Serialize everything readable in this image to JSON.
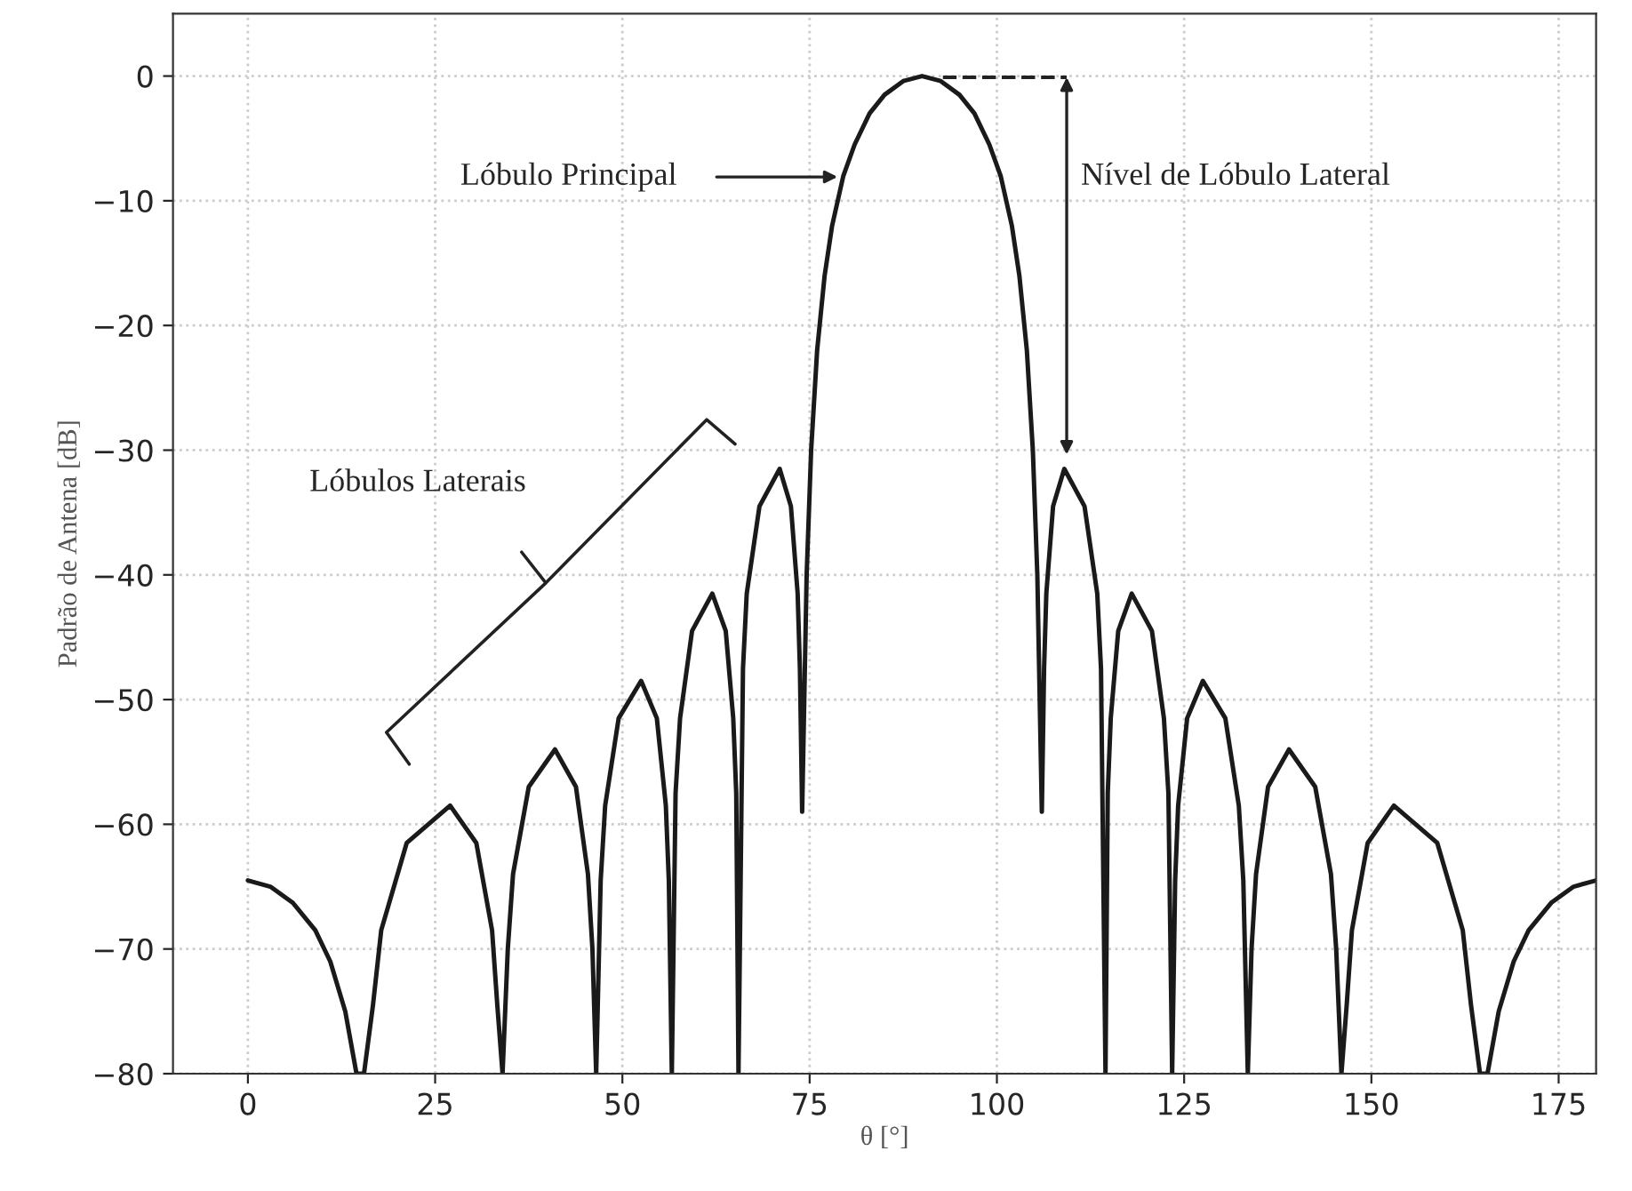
{
  "chart_data": {
    "type": "line",
    "xlabel": "θ [°]",
    "ylabel": "Padrão de Antena [dB]",
    "xlim": [
      -10,
      180
    ],
    "ylim": [
      -80,
      5
    ],
    "xticks": [
      0,
      25,
      50,
      75,
      100,
      125,
      150,
      175
    ],
    "yticks": [
      0,
      -10,
      -20,
      -30,
      -40,
      -50,
      -60,
      -70,
      -80
    ],
    "grid": true,
    "marker": "none",
    "line_style": "solid",
    "series": [
      {
        "color": "#1a1a1a",
        "x": [
          0,
          3,
          6,
          9,
          11,
          13,
          14.5,
          15.5,
          16.7,
          17.8,
          21.2,
          27,
          30.5,
          32.6,
          33.3,
          34,
          34.7,
          35.4,
          37.5,
          41,
          43.8,
          45.4,
          46,
          46.5,
          47.1,
          47.7,
          49.5,
          52.5,
          54.6,
          55.8,
          56.2,
          56.6,
          57.1,
          57.7,
          59.3,
          62,
          63.8,
          64.8,
          65.2,
          65.5,
          66.1,
          66.6,
          68.3,
          71,
          72.5,
          73.4,
          73.7,
          74,
          74.6,
          75.2,
          76,
          77,
          78,
          79.5,
          81,
          83,
          85,
          87.5,
          90,
          92.5,
          95,
          97,
          99,
          100.5,
          102,
          103,
          104,
          104.8,
          105.4,
          106,
          106.3,
          106.6,
          107.5,
          109,
          111.7,
          113.4,
          113.9,
          114.5,
          114.8,
          115.2,
          116.2,
          118,
          120.7,
          122.3,
          122.9,
          123.4,
          123.8,
          124.2,
          125.4,
          127.5,
          130.5,
          132.3,
          132.9,
          133.5,
          134,
          134.6,
          136.2,
          139,
          142.5,
          144.6,
          145.3,
          146,
          146.7,
          147.4,
          149.5,
          153,
          158.8,
          162.2,
          163.3,
          164.5,
          165.5,
          167,
          169,
          171,
          174,
          177,
          180
        ],
        "values": [
          -64.5,
          -65,
          -66.3,
          -68.5,
          -71,
          -75,
          -80,
          -80,
          -74.5,
          -68.5,
          -61.5,
          -58.5,
          -61.5,
          -68.5,
          -74.5,
          -80,
          -70,
          -64,
          -57,
          -54,
          -57,
          -64,
          -70,
          -80,
          -64.5,
          -58.5,
          -51.5,
          -48.5,
          -51.5,
          -58.5,
          -64.5,
          -80,
          -57.5,
          -51.5,
          -44.5,
          -41.5,
          -44.5,
          -51.5,
          -57.5,
          -80,
          -47.5,
          -41.5,
          -34.5,
          -31.5,
          -34.5,
          -41.5,
          -47.5,
          -59,
          -40,
          -30,
          -22,
          -16,
          -12,
          -8,
          -5.5,
          -3,
          -1.5,
          -0.4,
          0,
          -0.4,
          -1.5,
          -3,
          -5.5,
          -8,
          -12,
          -16,
          -22,
          -30,
          -40,
          -59,
          -47.5,
          -41.5,
          -34.5,
          -31.5,
          -34.5,
          -41.5,
          -47.5,
          -80,
          -57.5,
          -51.5,
          -44.5,
          -41.5,
          -44.5,
          -51.5,
          -57.5,
          -80,
          -64.5,
          -58.5,
          -51.5,
          -48.5,
          -51.5,
          -58.5,
          -64.5,
          -80,
          -70,
          -64,
          -57,
          -54,
          -57,
          -64,
          -70,
          -80,
          -74.5,
          -68.5,
          -61.5,
          -58.5,
          -61.5,
          -68.5,
          -74.5,
          -80,
          -80,
          -75,
          -71,
          -68.5,
          -66.3,
          -65,
          -64.5
        ]
      }
    ],
    "annotations": [
      "Lóbulo Principal",
      "Nível de Lóbulo Lateral",
      "Lóbulos Laterais"
    ]
  }
}
